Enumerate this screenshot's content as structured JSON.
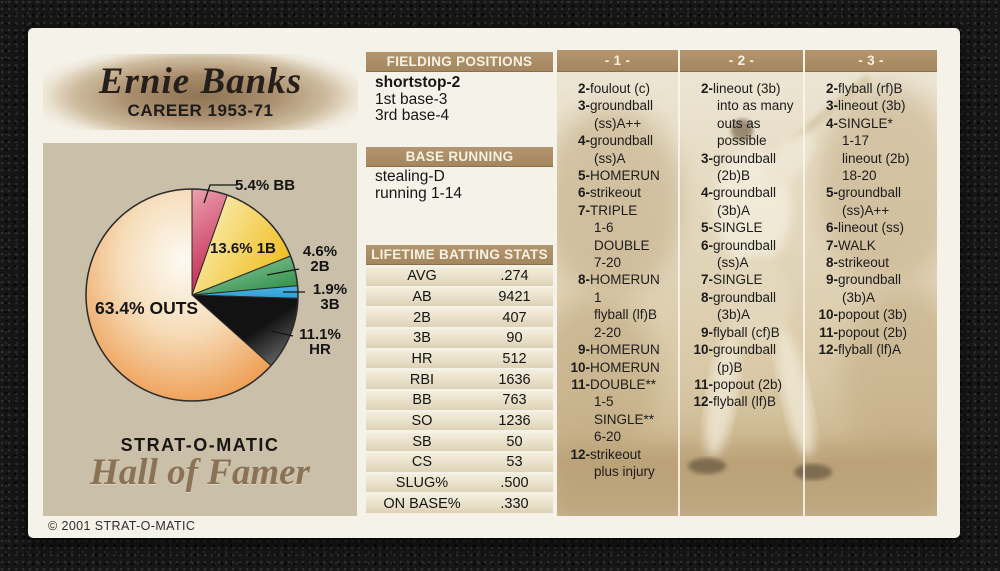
{
  "card": {
    "player_name": "Ernie Banks",
    "career": "CAREER 1953-71",
    "brand": "STRAT-O-MATIC",
    "hof_script": "Hall of Famer",
    "copyright": "© 2001 STRAT-O-MATIC"
  },
  "chart_data": {
    "type": "pie",
    "title": "",
    "start_angle_deg": 0,
    "direction": "clockwise",
    "slices": [
      {
        "label": "BB",
        "value": 5.4,
        "label_lines": [
          "5.4% BB"
        ],
        "color": "#c32350",
        "color_light": "#eba3b0"
      },
      {
        "label": "1B",
        "value": 13.6,
        "label_lines": [
          "13.6% 1B"
        ],
        "color": "#efba14",
        "color_light": "#faf0bc"
      },
      {
        "label": "2B",
        "value": 4.6,
        "label_lines": [
          "4.6%",
          "2B"
        ],
        "color": "#2e8f49",
        "color_light": "#9ed0aa"
      },
      {
        "label": "3B",
        "value": 1.9,
        "label_lines": [
          "1.9%",
          "3B"
        ],
        "color": "#2b9fd8",
        "color_light": "#4fb2e3"
      },
      {
        "label": "HR",
        "value": 11.1,
        "label_lines": [
          "11.1%",
          "HR"
        ],
        "color": "#121212",
        "color_light": "#7d7d7d"
      },
      {
        "label": "OUTS",
        "value": 63.4,
        "label_lines": [
          "63.4% OUTS"
        ],
        "color": "#ec8a33",
        "color_mid": "#f6ddba",
        "color_light": "#fdfaf2"
      }
    ]
  },
  "sections": {
    "fielding": {
      "title": "FIELDING POSITIONS",
      "rows": [
        "shortstop-2",
        "1st base-3",
        "3rd base-4"
      ]
    },
    "base_running": {
      "title": "BASE RUNNING",
      "rows": [
        "stealing-D",
        "running 1-14"
      ]
    },
    "batting_stats": {
      "title": "LIFETIME BATTING STATS",
      "rows": [
        {
          "stat": "AVG",
          "value": ".274"
        },
        {
          "stat": "AB",
          "value": "9421"
        },
        {
          "stat": "2B",
          "value": "407"
        },
        {
          "stat": "3B",
          "value": "90"
        },
        {
          "stat": "HR",
          "value": "512"
        },
        {
          "stat": "RBI",
          "value": "1636"
        },
        {
          "stat": "BB",
          "value": "763"
        },
        {
          "stat": "SO",
          "value": "1236"
        },
        {
          "stat": "SB",
          "value": "50"
        },
        {
          "stat": "CS",
          "value": "53"
        },
        {
          "stat": "SLUG%",
          "value": ".500"
        },
        {
          "stat": "ON BASE%",
          "value": ".330"
        }
      ]
    }
  },
  "dice_columns": [
    {
      "title": "- 1 -",
      "lines": [
        {
          "num": "2",
          "text": "foulout (c)"
        },
        {
          "num": "3",
          "text": "groundball"
        },
        {
          "text": "(ss)A++"
        },
        {
          "num": "4",
          "text": "groundball"
        },
        {
          "text": "(ss)A"
        },
        {
          "num": "5",
          "text": "HOMERUN"
        },
        {
          "num": "6",
          "text": "strikeout"
        },
        {
          "num": "7",
          "text": "TRIPLE"
        },
        {
          "text": "1-6"
        },
        {
          "text": "DOUBLE"
        },
        {
          "text": "7-20"
        },
        {
          "num": "8",
          "text": "HOMERUN"
        },
        {
          "text": "1"
        },
        {
          "text": "flyball (lf)B"
        },
        {
          "text": "2-20"
        },
        {
          "num": "9",
          "text": "HOMERUN"
        },
        {
          "num": "10",
          "text": "HOMERUN"
        },
        {
          "num": "11",
          "text": "DOUBLE**"
        },
        {
          "text": "1-5"
        },
        {
          "text": "SINGLE**"
        },
        {
          "text": "6-20"
        },
        {
          "num": "12",
          "text": "strikeout"
        },
        {
          "text": "plus injury"
        }
      ]
    },
    {
      "title": "- 2 -",
      "lines": [
        {
          "num": "2",
          "text": "lineout (3b)"
        },
        {
          "text": "into as many"
        },
        {
          "text": "outs as"
        },
        {
          "text": "possible"
        },
        {
          "num": "3",
          "text": "groundball"
        },
        {
          "text": "(2b)B"
        },
        {
          "num": "4",
          "text": "groundball"
        },
        {
          "text": "(3b)A"
        },
        {
          "num": "5",
          "text": "SINGLE"
        },
        {
          "num": "6",
          "text": "groundball"
        },
        {
          "text": "(ss)A"
        },
        {
          "num": "7",
          "text": "SINGLE"
        },
        {
          "num": "8",
          "text": "groundball"
        },
        {
          "text": "(3b)A"
        },
        {
          "num": "9",
          "text": "flyball (cf)B"
        },
        {
          "num": "10",
          "text": "groundball"
        },
        {
          "text": "(p)B"
        },
        {
          "num": "11",
          "text": "popout (2b)"
        },
        {
          "num": "12",
          "text": "flyball (lf)B"
        }
      ]
    },
    {
      "title": "- 3 -",
      "lines": [
        {
          "num": "2",
          "text": "flyball (rf)B"
        },
        {
          "num": "3",
          "text": "lineout (3b)"
        },
        {
          "num": "4",
          "text": "SINGLE*"
        },
        {
          "text": "1-17"
        },
        {
          "text": "lineout (2b)"
        },
        {
          "text": "18-20"
        },
        {
          "num": "5",
          "text": "groundball"
        },
        {
          "text": "(ss)A++"
        },
        {
          "num": "6",
          "text": "lineout (ss)"
        },
        {
          "num": "7",
          "text": "WALK"
        },
        {
          "num": "8",
          "text": "strikeout"
        },
        {
          "num": "9",
          "text": "groundball"
        },
        {
          "text": "(3b)A"
        },
        {
          "num": "10",
          "text": "popout (3b)"
        },
        {
          "num": "11",
          "text": "popout (2b)"
        },
        {
          "num": "12",
          "text": "flyball (lf)A"
        }
      ]
    }
  ]
}
